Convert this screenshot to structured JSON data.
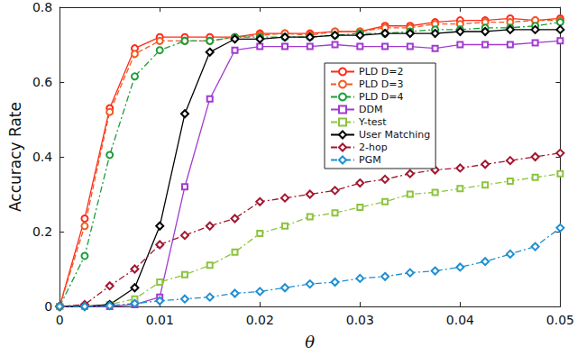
{
  "chart_data": {
    "type": "line",
    "x_label": "θ",
    "y_label": "Accuracy Rate",
    "x": [
      0,
      0.0025,
      0.005,
      0.0075,
      0.01,
      0.0125,
      0.015,
      0.0175,
      0.02,
      0.0225,
      0.025,
      0.0275,
      0.03,
      0.0325,
      0.035,
      0.0375,
      0.04,
      0.0425,
      0.045,
      0.0475,
      0.05
    ],
    "xlim": [
      0,
      0.05
    ],
    "xticks": [
      0,
      0.01,
      0.02,
      0.03,
      0.04,
      0.05
    ],
    "ylim": [
      0,
      0.8
    ],
    "yticks": [
      0,
      0.2,
      0.4,
      0.6,
      0.8
    ],
    "grid": false,
    "legend": "center",
    "series": [
      {
        "name": "PLD D=2",
        "color": "#ff2a1a",
        "marker": "circle",
        "line_style": "solid",
        "values": [
          0,
          0.235,
          0.53,
          0.69,
          0.72,
          0.72,
          0.72,
          0.72,
          0.73,
          0.73,
          0.73,
          0.735,
          0.735,
          0.75,
          0.75,
          0.76,
          0.765,
          0.765,
          0.77,
          0.765,
          0.77
        ]
      },
      {
        "name": "PLD D=3",
        "color": "#f15a22",
        "marker": "circle",
        "line_style": "dashed",
        "values": [
          0,
          0.215,
          0.52,
          0.675,
          0.71,
          0.71,
          0.71,
          0.72,
          0.725,
          0.73,
          0.725,
          0.735,
          0.735,
          0.745,
          0.745,
          0.755,
          0.755,
          0.76,
          0.76,
          0.765,
          0.765
        ]
      },
      {
        "name": "PLD D=4",
        "color": "#1a9e3a",
        "marker": "circle",
        "line_style": "dashdot",
        "values": [
          0,
          0.135,
          0.405,
          0.615,
          0.685,
          0.71,
          0.71,
          0.72,
          0.72,
          0.72,
          0.72,
          0.725,
          0.73,
          0.73,
          0.735,
          0.74,
          0.74,
          0.745,
          0.745,
          0.75,
          0.76
        ]
      },
      {
        "name": "DDM",
        "color": "#a13bd1",
        "marker": "square",
        "line_style": "solid",
        "values": [
          0,
          0,
          0,
          0.005,
          0.025,
          0.32,
          0.555,
          0.685,
          0.695,
          0.695,
          0.695,
          0.7,
          0.695,
          0.695,
          0.695,
          0.69,
          0.7,
          0.7,
          0.7,
          0.705,
          0.71
        ]
      },
      {
        "name": "Y-test",
        "color": "#8cc43f",
        "marker": "square",
        "line_style": "dashdot",
        "values": [
          0,
          0,
          0.005,
          0.02,
          0.065,
          0.085,
          0.11,
          0.145,
          0.195,
          0.215,
          0.24,
          0.25,
          0.265,
          0.28,
          0.3,
          0.305,
          0.315,
          0.325,
          0.335,
          0.345,
          0.355
        ]
      },
      {
        "name": "User Matching",
        "color": "#000000",
        "marker": "diamond",
        "line_style": "solid",
        "values": [
          0,
          0,
          0.005,
          0.05,
          0.215,
          0.515,
          0.68,
          0.715,
          0.715,
          0.72,
          0.72,
          0.725,
          0.725,
          0.73,
          0.73,
          0.73,
          0.735,
          0.735,
          0.74,
          0.74,
          0.74
        ]
      },
      {
        "name": "2-hop",
        "color": "#a3162f",
        "marker": "diamond",
        "line_style": "dashdot",
        "values": [
          0,
          0.005,
          0.055,
          0.1,
          0.165,
          0.19,
          0.215,
          0.235,
          0.28,
          0.29,
          0.3,
          0.31,
          0.33,
          0.34,
          0.355,
          0.365,
          0.37,
          0.38,
          0.39,
          0.4,
          0.41
        ]
      },
      {
        "name": "PGM",
        "color": "#1f8fd1",
        "marker": "diamond",
        "line_style": "dashdot",
        "values": [
          0,
          0,
          0.002,
          0.008,
          0.015,
          0.02,
          0.025,
          0.035,
          0.04,
          0.05,
          0.06,
          0.065,
          0.075,
          0.08,
          0.09,
          0.095,
          0.105,
          0.12,
          0.14,
          0.16,
          0.21
        ]
      }
    ]
  }
}
